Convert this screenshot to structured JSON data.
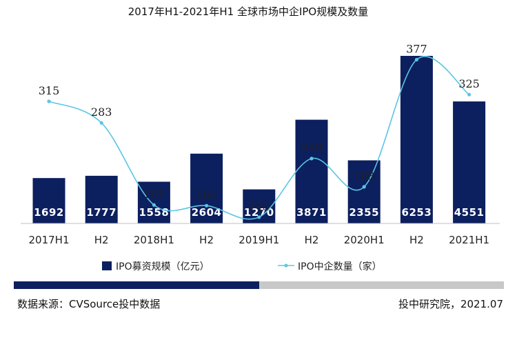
{
  "chart_data": {
    "type": "bar",
    "title": "2017年H1-2021年H1 全球市场中企IPO规模及数量",
    "categories": [
      "2017H1",
      "H2",
      "2018H1",
      "H2",
      "2019H1",
      "H2",
      "2020H1",
      "H2",
      "2021H1"
    ],
    "series": [
      {
        "name": "IPO募资规模（亿元）",
        "type": "bar",
        "values": [
          1692,
          1777,
          1558,
          2604,
          1270,
          3871,
          2355,
          6253,
          4551
        ],
        "color": "#0c1f5e"
      },
      {
        "name": "IPO中企数量（家）",
        "type": "line",
        "values": [
          315,
          283,
          161,
          160,
          143,
          230,
          188,
          377,
          325
        ],
        "color": "#5bc5e3"
      }
    ],
    "legend_position": "bottom",
    "grid": false
  },
  "footer": {
    "source": "数据来源：CVSource投中数据",
    "credit": "投中研究院，2021.07",
    "bar_dark_color": "#0c1f5e",
    "bar_light_color": "#c8c8c8"
  }
}
